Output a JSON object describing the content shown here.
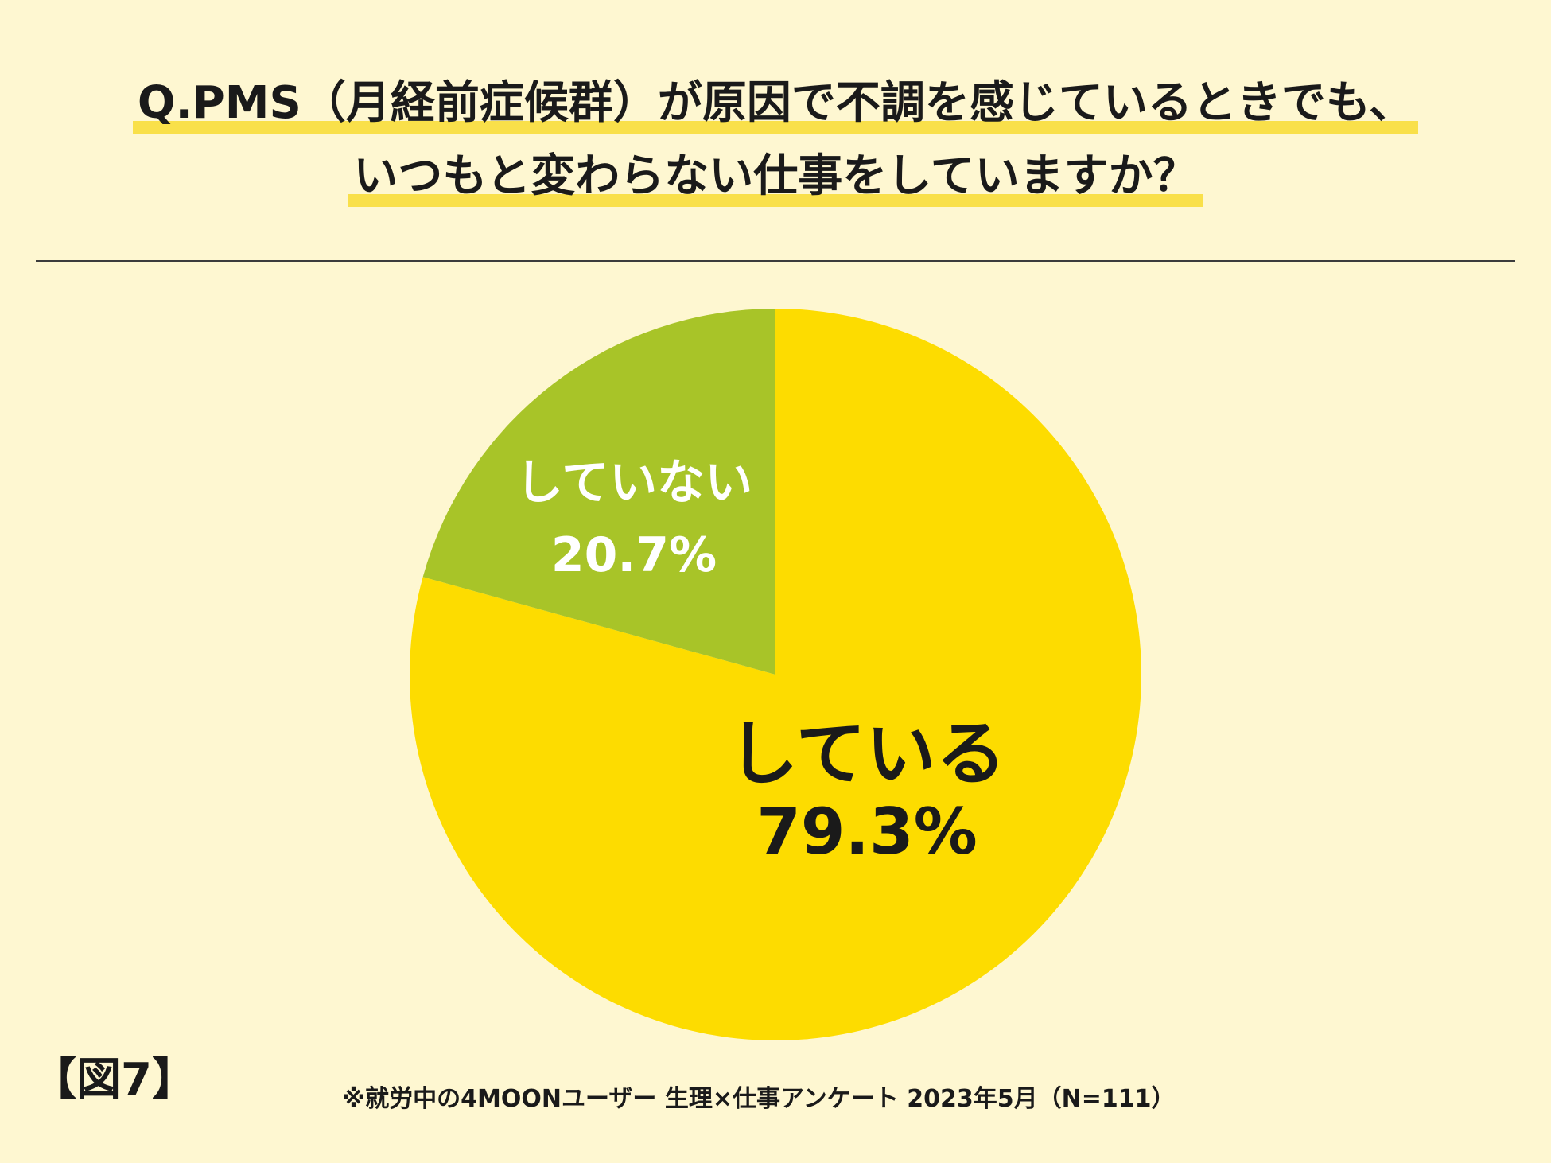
{
  "question": {
    "line1": "Q.PMS（月経前症候群）が原因で不調を感じているときでも、",
    "line2": "いつもと変わらない仕事をしていますか？"
  },
  "figure_label": "【図7】",
  "source_note": "※就労中の4MOONユーザー 生理×仕事アンケート 2023年5月（N=111）",
  "colors": {
    "background": "#fef7d1",
    "highlight": "#f9e04a",
    "yes": "#fddc00",
    "no": "#a8c428",
    "label_dark": "#1a1a1a",
    "label_light": "#ffffff"
  },
  "chart_data": {
    "type": "pie",
    "start": "12 o'clock, clockwise",
    "slices": [
      {
        "label": "している",
        "value": 79.3,
        "value_text": "79.3%",
        "color": "#fddc00",
        "text_color": "#1a1a1a"
      },
      {
        "label": "していない",
        "value": 20.7,
        "value_text": "20.7%",
        "color": "#a8c428",
        "text_color": "#ffffff"
      }
    ]
  }
}
